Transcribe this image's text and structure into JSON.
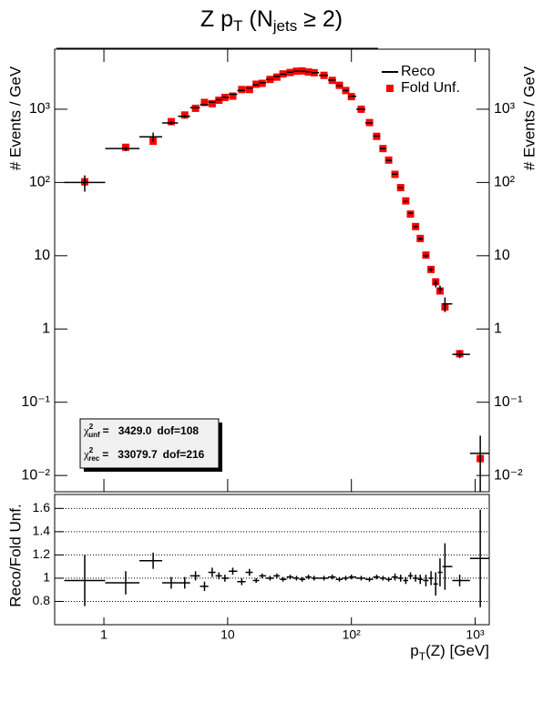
{
  "chart_data": {
    "type": "unfolding",
    "title_parts": [
      "Z p",
      "T",
      " (N",
      "jets",
      " ≥ 2)"
    ],
    "ylabel": "# Events / GeV",
    "xlabel_parts": [
      "p",
      "T",
      "(Z) [GeV]"
    ],
    "log_x": true,
    "log_y": true,
    "legend": "top-right",
    "xlim": [
      0.4,
      1300
    ],
    "xticks": [
      1,
      10,
      {
        "value": 100,
        "label": "10²"
      },
      {
        "value": 1000,
        "label": "10³"
      }
    ],
    "ylim": [
      0.006,
      6600
    ],
    "yticks": [
      {
        "value": 0.01,
        "label": "10⁻²"
      },
      {
        "value": 0.1,
        "label": "10⁻¹"
      },
      1,
      10,
      {
        "value": 100,
        "label": "10²"
      },
      {
        "value": 1000,
        "label": "10³"
      }
    ],
    "x": [
      0.7,
      1.5,
      2.5,
      3.5,
      4.5,
      5.5,
      6.5,
      7.5,
      8.5,
      9.5,
      11,
      13,
      15,
      17,
      19,
      22,
      25,
      28,
      32,
      36,
      40,
      45,
      50,
      60,
      70,
      80,
      90,
      100,
      120,
      140,
      160,
      180,
      200,
      225,
      250,
      275,
      300,
      330,
      360,
      400,
      440,
      480,
      520,
      570,
      750,
      1100
    ],
    "series": [
      {
        "name": "Reco",
        "color": "#000000",
        "values": [
          100,
          290,
          420,
          650,
          800,
          1050,
          1150,
          1250,
          1350,
          1450,
          1600,
          1800,
          1950,
          2150,
          2300,
          2550,
          2800,
          3000,
          3200,
          3300,
          3300,
          3250,
          3150,
          2900,
          2500,
          2100,
          1800,
          1500,
          1000,
          650,
          430,
          290,
          200,
          130,
          85,
          55,
          38,
          25,
          17,
          10,
          6.5,
          4.2,
          3.5,
          2.2,
          0.45,
          0.02
        ],
        "errors": [
          25,
          20,
          60,
          40,
          40,
          30,
          30,
          30,
          30,
          30,
          30,
          30,
          30,
          30,
          30,
          30,
          30,
          30,
          30,
          30,
          30,
          30,
          30,
          30,
          30,
          25,
          25,
          20,
          15,
          10,
          8,
          6,
          5,
          3,
          2,
          1.5,
          1.2,
          1,
          0.8,
          0.5,
          0.4,
          0.5,
          0.4,
          0.5,
          0.05,
          0.015
        ]
      },
      {
        "name": "Fold Unf.",
        "color": "#ff0000",
        "values": [
          102,
          302,
          365,
          677,
          833,
          1029,
          1237,
          1190,
          1324,
          1450,
          1509,
          1856,
          1857,
          2194,
          2255,
          2550,
          2745,
          3030,
          3168,
          3300,
          3333,
          3218,
          3150,
          2900,
          2475,
          2121,
          1800,
          1485,
          1000,
          657,
          426,
          290,
          202,
          129,
          85,
          56,
          37,
          25,
          17.2,
          10.2,
          6.5,
          4.4,
          3.3,
          2.0,
          0.46,
          0.017
        ]
      }
    ],
    "stats": [
      {
        "symbol": "χ",
        "sup": "2",
        "sub": "unf",
        "eq": "=",
        "value": "3429.0",
        "dof": "dof=108"
      },
      {
        "symbol": "χ",
        "sup": "2",
        "sub": "rec",
        "eq": "=",
        "value": "33079.7",
        "dof": "dof=216"
      }
    ],
    "ratio": {
      "ylabel": "Reco/Fold Unf.",
      "ylim": [
        0.6,
        1.72
      ],
      "yticks": [
        0.8,
        1,
        1.2,
        1.4,
        1.6
      ],
      "grid": true,
      "values": [
        0.98,
        0.96,
        1.15,
        0.96,
        0.96,
        1.02,
        0.93,
        1.05,
        1.02,
        1.0,
        1.06,
        0.97,
        1.05,
        0.98,
        1.02,
        1.0,
        1.02,
        0.99,
        1.01,
        1.0,
        0.99,
        1.01,
        1.0,
        1.0,
        1.01,
        0.99,
        1.0,
        1.01,
        1.0,
        0.99,
        1.01,
        1.0,
        0.99,
        1.01,
        1.0,
        0.98,
        1.02,
        1.0,
        0.99,
        0.98,
        1.0,
        0.95,
        1.05,
        1.1,
        0.98,
        1.17
      ],
      "errors": [
        0.22,
        0.1,
        0.07,
        0.05,
        0.05,
        0.04,
        0.04,
        0.04,
        0.03,
        0.03,
        0.03,
        0.03,
        0.03,
        0.02,
        0.02,
        0.02,
        0.02,
        0.02,
        0.02,
        0.02,
        0.02,
        0.02,
        0.02,
        0.02,
        0.02,
        0.02,
        0.02,
        0.02,
        0.02,
        0.02,
        0.02,
        0.02,
        0.02,
        0.03,
        0.03,
        0.03,
        0.03,
        0.03,
        0.04,
        0.05,
        0.06,
        0.1,
        0.12,
        0.2,
        0.05,
        0.42
      ]
    }
  }
}
